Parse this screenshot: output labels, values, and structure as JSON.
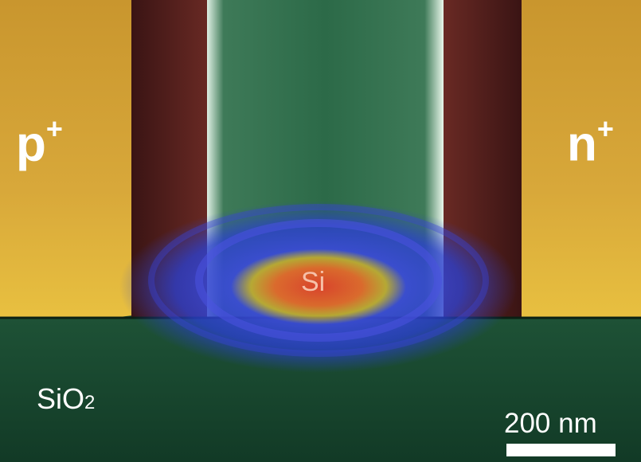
{
  "labels": {
    "p_region": "p",
    "p_sup": "+",
    "n_region": "n",
    "n_sup": "+",
    "core": "Si",
    "substrate_main": "SiO",
    "substrate_sub": "2",
    "scale": "200 nm"
  },
  "colors": {
    "doped_regions": "#d29a2c",
    "sidewall": "#5a1e1a",
    "waveguide": "#2c6a48",
    "substrate": "#16402c",
    "mode_outer": "#2a3fd0",
    "mode_core": "#e8402a",
    "text": "#ffffff"
  }
}
